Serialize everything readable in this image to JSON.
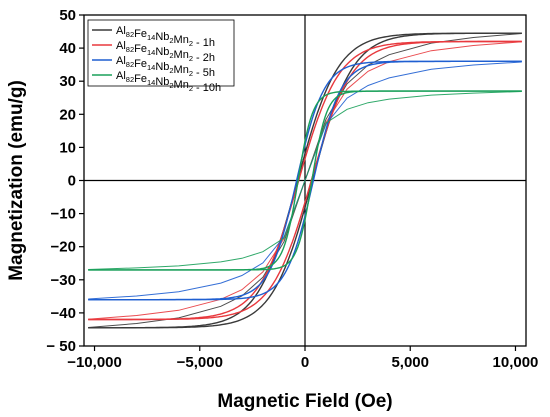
{
  "chart_data": {
    "type": "line",
    "xlabel": "Magnetic Field (Oe)",
    "ylabel": "Magnetization (emu/g)",
    "xlim": [
      -10500,
      10500
    ],
    "ylim": [
      -50,
      50
    ],
    "x_ticks": [
      -10000,
      -5000,
      0,
      5000,
      10000
    ],
    "x_tick_labels": [
      "−10,000",
      "−5,000",
      "0",
      "5,000",
      "10,000"
    ],
    "y_ticks": [
      -50,
      -40,
      -30,
      -20,
      -10,
      0,
      10,
      20,
      30,
      40,
      50
    ],
    "y_tick_labels": [
      "− 50",
      "−40",
      "−30",
      "−20",
      "−10",
      "0",
      "10",
      "20",
      "30",
      "40",
      "50"
    ],
    "zero_lines": true,
    "legend_position": "top-left",
    "series": [
      {
        "name": "Al82Fe14Nb2Mn2 - 1h",
        "legend": {
          "parts": [
            [
              "Al",
              ""
            ],
            [
              "82",
              "sub"
            ],
            [
              "Fe",
              ""
            ],
            [
              "14",
              "sub"
            ],
            [
              "Nb",
              ""
            ],
            [
              "2",
              "sub"
            ],
            [
              "Mn",
              ""
            ],
            [
              "2",
              "sub"
            ],
            [
              " - 1h",
              ""
            ]
          ]
        },
        "color": "#3a3a3a",
        "ms": 44.5,
        "hc": 350,
        "h0": 1900,
        "x": [
          -10300,
          -8000,
          -6000,
          -4000,
          -3000,
          -2000,
          -1000,
          0,
          1000,
          2000,
          3000,
          4000,
          6000,
          8000,
          10300
        ],
        "y": [
          -44.4,
          -43.2,
          -41.5,
          -38.0,
          -34.9,
          -29.2,
          -18.5,
          0.0,
          18.5,
          29.2,
          34.9,
          38.0,
          41.5,
          43.2,
          44.4
        ]
      },
      {
        "name": "Al82Fe14Nb2Mn2 - 2h",
        "legend": {
          "parts": [
            [
              "Al",
              ""
            ],
            [
              "82",
              "sub"
            ],
            [
              "Fe",
              ""
            ],
            [
              "14",
              "sub"
            ],
            [
              "Nb",
              ""
            ],
            [
              "2",
              "sub"
            ],
            [
              "Mn",
              ""
            ],
            [
              "2",
              "sub"
            ],
            [
              " - 2h",
              ""
            ]
          ]
        },
        "color": "#e8383d",
        "ms": 42.0,
        "hc": 300,
        "h0": 1900,
        "x": [
          -10300,
          -8000,
          -6000,
          -4000,
          -3000,
          -2000,
          -1000,
          0,
          1000,
          2000,
          3000,
          4000,
          6000,
          8000,
          10300
        ],
        "y": [
          -41.9,
          -40.8,
          -39.2,
          -35.9,
          -33.0,
          -27.6,
          -17.5,
          0.0,
          17.5,
          27.6,
          33.0,
          35.9,
          39.2,
          40.8,
          41.9
        ]
      },
      {
        "name": "Al82Fe14Nb2Mn2 - 5h",
        "legend": {
          "parts": [
            [
              "Al",
              ""
            ],
            [
              "82",
              "sub"
            ],
            [
              "Fe",
              ""
            ],
            [
              "14",
              "sub"
            ],
            [
              "Nb",
              ""
            ],
            [
              "2",
              "sub"
            ],
            [
              "Mn",
              ""
            ],
            [
              "2",
              "sub"
            ],
            [
              " - 5h",
              ""
            ]
          ]
        },
        "color": "#1f5fd1",
        "ms": 36.0,
        "hc": 400,
        "h0": 1300,
        "x": [
          -10300,
          -8000,
          -6000,
          -4000,
          -3000,
          -2000,
          -1000,
          0,
          1000,
          2000,
          3000,
          4000,
          6000,
          8000,
          10300
        ],
        "y": [
          -35.8,
          -34.9,
          -33.6,
          -31.0,
          -28.7,
          -24.9,
          -17.0,
          0.0,
          17.0,
          24.9,
          28.7,
          31.0,
          33.6,
          34.9,
          35.8
        ]
      },
      {
        "name": "Al82Fe14Nb2Mn2 - 10h",
        "legend": {
          "parts": [
            [
              "Al",
              ""
            ],
            [
              "82",
              "sub"
            ],
            [
              "Fe",
              ""
            ],
            [
              "14",
              "sub"
            ],
            [
              "Nb",
              ""
            ],
            [
              "2",
              "sub"
            ],
            [
              "Mn",
              ""
            ],
            [
              "2",
              "sub"
            ],
            [
              " - 10h",
              ""
            ]
          ]
        },
        "color": "#1aa05a",
        "ms": 27.0,
        "hc": 330,
        "h0": 700,
        "x": [
          -10300,
          -8000,
          -6000,
          -4000,
          -3000,
          -2000,
          -1000,
          0,
          1000,
          2000,
          3000,
          4000,
          6000,
          8000,
          10300
        ],
        "y": [
          -26.9,
          -26.4,
          -25.8,
          -24.6,
          -23.5,
          -21.5,
          -17.4,
          0.0,
          17.4,
          21.5,
          23.5,
          24.6,
          25.8,
          26.4,
          26.9
        ]
      }
    ]
  }
}
